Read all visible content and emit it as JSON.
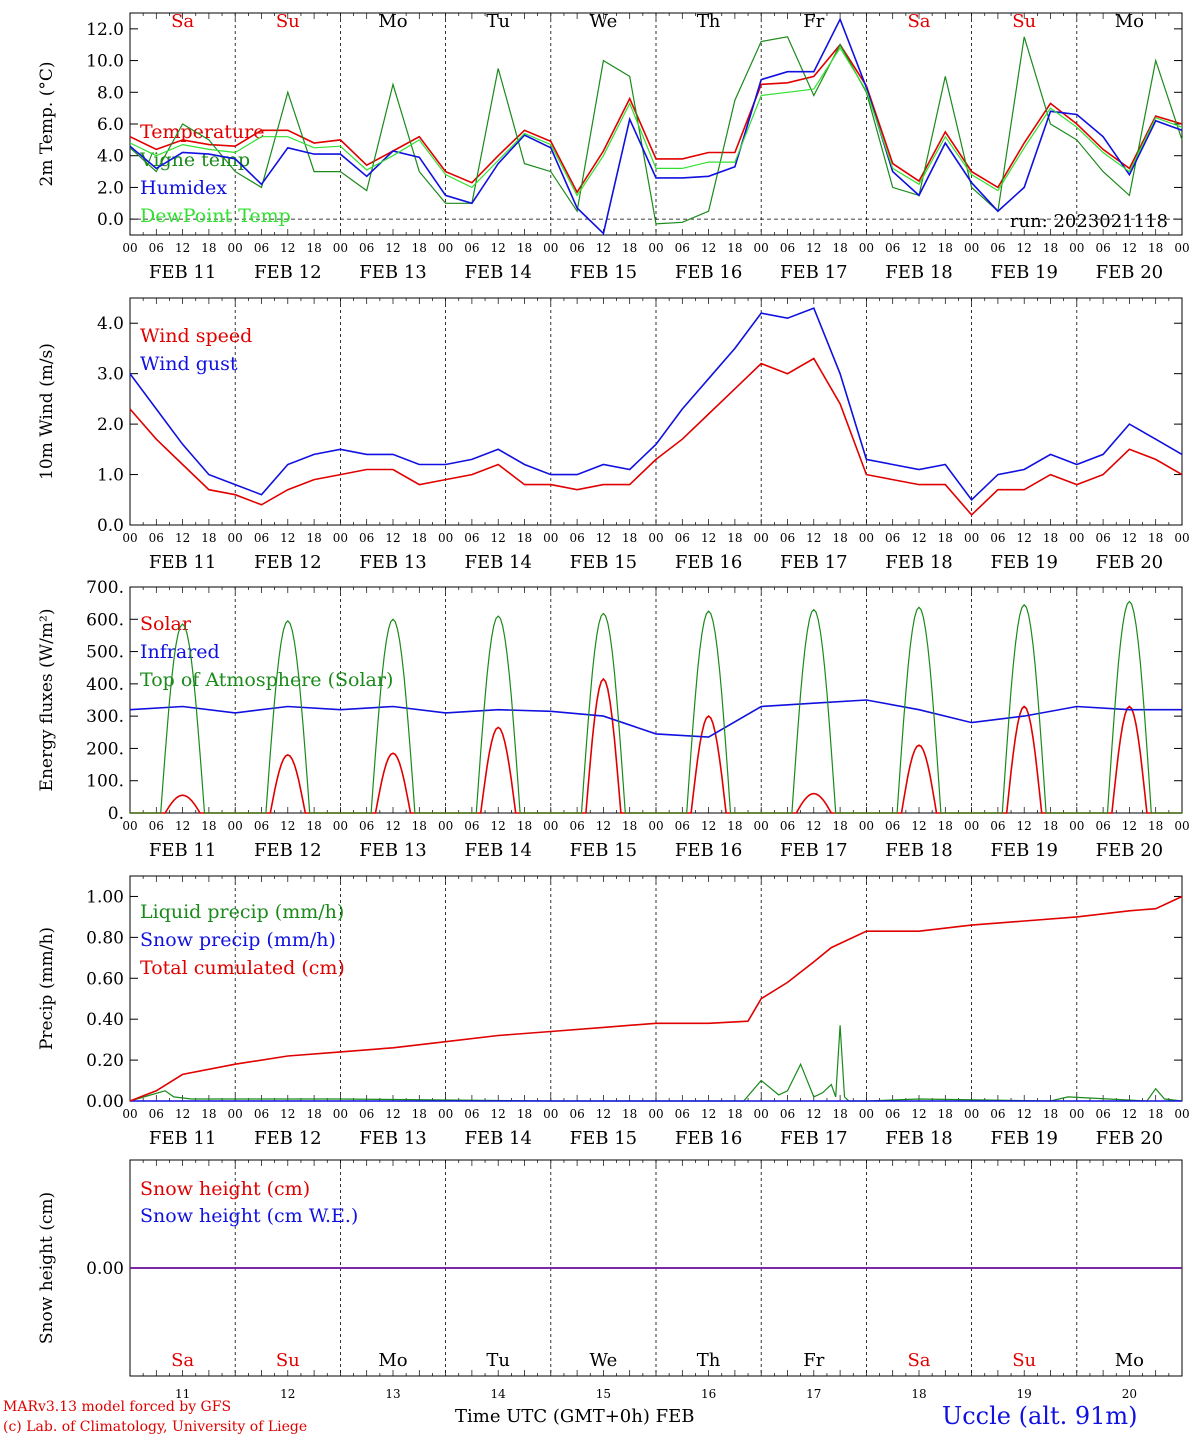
{
  "run_label": "run: 2023021118",
  "days": [
    "Sa",
    "Su",
    "Mo",
    "Tu",
    "We",
    "Th",
    "Fr",
    "Sa",
    "Su",
    "Mo"
  ],
  "day_colors": [
    "#e00000",
    "#e00000",
    "#000000",
    "#000000",
    "#000000",
    "#000000",
    "#000000",
    "#e00000",
    "#e00000",
    "#000000"
  ],
  "date_labels": [
    "FEB 11",
    "FEB 12",
    "FEB 13",
    "FEB 14",
    "FEB 15",
    "FEB 16",
    "FEB 17",
    "FEB 18",
    "FEB 19",
    "FEB 20"
  ],
  "hour_ticks": [
    "00",
    "06",
    "12",
    "18"
  ],
  "bottom_day_numbers": [
    "11",
    "12",
    "13",
    "14",
    "15",
    "16",
    "17",
    "18",
    "19",
    "20"
  ],
  "footer": {
    "model": "MARv3.13 model forced by GFS",
    "lab": "(c) Lab. of Climatology, University of Liege",
    "axis_title": "Time UTC (GMT+0h) FEB",
    "station": "Uccle (alt. 91m)"
  },
  "colors": {
    "red": "#e00000",
    "green": "#1a8a1a",
    "blue": "#1010e0",
    "light_green": "#30e030",
    "purple": "#7a1fa2"
  },
  "chart_data": [
    {
      "type": "line",
      "ylabel": "2m Temp. (°C)",
      "ylim": [
        -1.0,
        13.0
      ],
      "yticks": [
        "0.0",
        "2.0",
        "4.0",
        "6.0",
        "8.0",
        "10.0",
        "12.0"
      ],
      "x_unit": "hours since FEB 11 00 UTC",
      "x_range": [
        0,
        240
      ],
      "series": [
        {
          "name": "Temperature",
          "color": "red",
          "x": [
            0,
            6,
            12,
            18,
            24,
            30,
            36,
            42,
            48,
            54,
            60,
            66,
            72,
            78,
            84,
            90,
            96,
            102,
            108,
            114,
            120,
            126,
            132,
            138,
            144,
            150,
            156,
            162,
            168,
            174,
            180,
            186,
            192,
            198,
            204,
            210,
            216,
            222,
            228,
            234,
            240
          ],
          "y": [
            5.2,
            4.4,
            5.0,
            4.7,
            4.6,
            5.6,
            5.6,
            4.8,
            5.0,
            3.4,
            4.3,
            5.2,
            3.0,
            2.3,
            4.0,
            5.6,
            4.9,
            1.7,
            4.3,
            7.6,
            3.8,
            3.8,
            4.2,
            4.2,
            8.5,
            8.6,
            9.0,
            11.0,
            8.4,
            3.5,
            2.4,
            5.5,
            3.0,
            2.0,
            4.8,
            7.3,
            6.0,
            4.4,
            3.2,
            6.5,
            6.0
          ]
        },
        {
          "name": "Vigne temp",
          "color": "green",
          "x": [
            0,
            6,
            12,
            18,
            24,
            30,
            36,
            42,
            48,
            54,
            60,
            66,
            72,
            78,
            84,
            90,
            96,
            102,
            108,
            114,
            120,
            126,
            132,
            138,
            144,
            150,
            156,
            162,
            168,
            174,
            180,
            186,
            192,
            198,
            204,
            210,
            216,
            222,
            228,
            234,
            240
          ],
          "y": [
            4.5,
            3.0,
            6.0,
            5.0,
            3.0,
            2.0,
            8.0,
            3.0,
            3.0,
            1.8,
            8.5,
            3.0,
            1.0,
            1.0,
            9.5,
            3.5,
            3.0,
            0.5,
            10.0,
            9.0,
            -0.3,
            -0.2,
            0.5,
            7.5,
            11.2,
            11.5,
            7.8,
            11.0,
            8.0,
            2.0,
            1.5,
            9.0,
            2.0,
            0.5,
            11.5,
            6.0,
            5.0,
            3.0,
            1.5,
            10.0,
            5.0
          ]
        },
        {
          "name": "Humidex",
          "color": "blue",
          "x": [
            0,
            6,
            12,
            18,
            24,
            30,
            36,
            42,
            48,
            54,
            60,
            66,
            72,
            78,
            84,
            90,
            96,
            102,
            108,
            114,
            120,
            126,
            132,
            138,
            144,
            150,
            156,
            162,
            168,
            174,
            180,
            186,
            192,
            198,
            204,
            210,
            216,
            222,
            228,
            234,
            240
          ],
          "y": [
            4.6,
            3.2,
            4.2,
            4.1,
            3.8,
            2.2,
            4.5,
            4.1,
            4.1,
            2.7,
            4.3,
            3.9,
            1.5,
            1.0,
            3.5,
            5.3,
            4.5,
            0.7,
            -0.9,
            6.3,
            2.6,
            2.6,
            2.7,
            3.3,
            8.8,
            9.3,
            9.3,
            12.6,
            8.3,
            3.0,
            1.5,
            4.8,
            2.3,
            0.5,
            2.0,
            6.8,
            6.6,
            5.2,
            2.8,
            6.2,
            5.6
          ]
        },
        {
          "name": "DewPoint Temp",
          "color": "light_green",
          "x": [
            0,
            6,
            12,
            18,
            24,
            30,
            36,
            42,
            48,
            54,
            60,
            66,
            72,
            78,
            84,
            90,
            96,
            102,
            108,
            114,
            120,
            126,
            132,
            138,
            144,
            150,
            156,
            162,
            168,
            174,
            180,
            186,
            192,
            198,
            204,
            210,
            216,
            222,
            228,
            234,
            240
          ],
          "y": [
            4.8,
            4.0,
            4.7,
            4.4,
            4.2,
            5.2,
            5.2,
            4.5,
            4.6,
            3.1,
            4.0,
            5.0,
            2.8,
            2.0,
            3.7,
            5.4,
            4.7,
            1.5,
            4.0,
            7.3,
            3.2,
            3.2,
            3.6,
            3.6,
            7.8,
            8.0,
            8.2,
            10.8,
            8.1,
            3.2,
            2.2,
            5.2,
            2.8,
            1.8,
            4.5,
            7.0,
            5.8,
            4.2,
            3.0,
            6.4,
            5.8
          ]
        }
      ]
    },
    {
      "type": "line",
      "ylabel": "10m Wind (m/s)",
      "ylim": [
        0.0,
        4.5
      ],
      "yticks": [
        "0.0",
        "1.0",
        "2.0",
        "3.0",
        "4.0"
      ],
      "series": [
        {
          "name": "Wind speed",
          "color": "red",
          "x": [
            0,
            6,
            12,
            18,
            24,
            30,
            36,
            42,
            48,
            54,
            60,
            66,
            72,
            78,
            84,
            90,
            96,
            102,
            108,
            114,
            120,
            126,
            132,
            138,
            144,
            150,
            156,
            162,
            168,
            174,
            180,
            186,
            192,
            198,
            204,
            210,
            216,
            222,
            228,
            234,
            240
          ],
          "y": [
            2.3,
            1.7,
            1.2,
            0.7,
            0.6,
            0.4,
            0.7,
            0.9,
            1.0,
            1.1,
            1.1,
            0.8,
            0.9,
            1.0,
            1.2,
            0.8,
            0.8,
            0.7,
            0.8,
            0.8,
            1.3,
            1.7,
            2.2,
            2.7,
            3.2,
            3.0,
            3.3,
            2.4,
            1.0,
            0.9,
            0.8,
            0.8,
            0.2,
            0.7,
            0.7,
            1.0,
            0.8,
            1.0,
            1.5,
            1.3,
            1.0
          ]
        },
        {
          "name": "Wind gust",
          "color": "blue",
          "x": [
            0,
            6,
            12,
            18,
            24,
            30,
            36,
            42,
            48,
            54,
            60,
            66,
            72,
            78,
            84,
            90,
            96,
            102,
            108,
            114,
            120,
            126,
            132,
            138,
            144,
            150,
            156,
            162,
            168,
            174,
            180,
            186,
            192,
            198,
            204,
            210,
            216,
            222,
            228,
            234,
            240
          ],
          "y": [
            3.0,
            2.3,
            1.6,
            1.0,
            0.8,
            0.6,
            1.2,
            1.4,
            1.5,
            1.4,
            1.4,
            1.2,
            1.2,
            1.3,
            1.5,
            1.2,
            1.0,
            1.0,
            1.2,
            1.1,
            1.6,
            2.3,
            2.9,
            3.5,
            4.2,
            4.1,
            4.3,
            3.0,
            1.3,
            1.2,
            1.1,
            1.2,
            0.5,
            1.0,
            1.1,
            1.4,
            1.2,
            1.4,
            2.0,
            1.7,
            1.4
          ]
        }
      ]
    },
    {
      "type": "line",
      "ylabel": "Energy fluxes (W/m²)",
      "ylim": [
        0,
        700
      ],
      "yticks": [
        "0.",
        "100.",
        "200.",
        "300.",
        "400.",
        "500.",
        "600.",
        "700."
      ],
      "series": [
        {
          "name": "Solar",
          "color": "red",
          "daily_peak": [
            55,
            180,
            185,
            265,
            415,
            300,
            60,
            210,
            330,
            330
          ]
        },
        {
          "name": "Infrared",
          "color": "blue",
          "x": [
            0,
            12,
            24,
            36,
            48,
            60,
            72,
            84,
            96,
            108,
            120,
            132,
            144,
            156,
            168,
            180,
            192,
            204,
            216,
            228,
            240
          ],
          "y": [
            320,
            330,
            310,
            330,
            320,
            330,
            310,
            320,
            315,
            300,
            245,
            235,
            330,
            340,
            350,
            320,
            280,
            300,
            330,
            320,
            320
          ]
        },
        {
          "name": "Top of Atmosphere (Solar)",
          "color": "green",
          "daily_peak": [
            585,
            595,
            600,
            610,
            618,
            625,
            630,
            637,
            645,
            655
          ]
        }
      ]
    },
    {
      "type": "line",
      "ylabel": "Precip (mm/h)",
      "ylim": [
        0.0,
        1.1
      ],
      "yticks": [
        "0.00",
        "0.20",
        "0.40",
        "0.60",
        "0.80",
        "1.00"
      ],
      "series": [
        {
          "name": "Liquid precip (mm/h)",
          "color": "green",
          "x": [
            0,
            8,
            10,
            14,
            24,
            48,
            96,
            140,
            144,
            148,
            150,
            153,
            156,
            158,
            160,
            161,
            162,
            163,
            164,
            168,
            180,
            210,
            214,
            232,
            234,
            236,
            240
          ],
          "y": [
            0,
            0.05,
            0.02,
            0.01,
            0.01,
            0.01,
            0.0,
            0.0,
            0.1,
            0.03,
            0.05,
            0.18,
            0.02,
            0.04,
            0.08,
            0.02,
            0.37,
            0.02,
            0.0,
            0.0,
            0.01,
            0.0,
            0.02,
            0.0,
            0.06,
            0.01,
            0.0
          ]
        },
        {
          "name": "Snow precip (mm/h)",
          "color": "blue",
          "x": [
            0,
            240
          ],
          "y": [
            0,
            0
          ]
        },
        {
          "name": "Total cumulated (cm)",
          "color": "red",
          "x": [
            0,
            6,
            12,
            24,
            36,
            48,
            60,
            72,
            84,
            96,
            108,
            120,
            132,
            141,
            144,
            150,
            156,
            160,
            168,
            180,
            192,
            204,
            216,
            228,
            234,
            240
          ],
          "y": [
            0.0,
            0.05,
            0.13,
            0.18,
            0.22,
            0.24,
            0.26,
            0.29,
            0.32,
            0.34,
            0.36,
            0.38,
            0.38,
            0.39,
            0.5,
            0.58,
            0.68,
            0.75,
            0.83,
            0.83,
            0.86,
            0.88,
            0.9,
            0.93,
            0.94,
            1.0
          ]
        }
      ]
    },
    {
      "type": "line",
      "ylabel": "Snow height (cm)",
      "ylim": [
        -1.0,
        1.0
      ],
      "yticks": [
        "0.00"
      ],
      "series": [
        {
          "name": "Snow height (cm)",
          "color": "red",
          "x": [
            0,
            240
          ],
          "y": [
            0,
            0
          ]
        },
        {
          "name": "Snow height (cm W.E.)",
          "color": "blue",
          "x": [
            0,
            240
          ],
          "y": [
            0,
            0
          ]
        }
      ]
    }
  ]
}
